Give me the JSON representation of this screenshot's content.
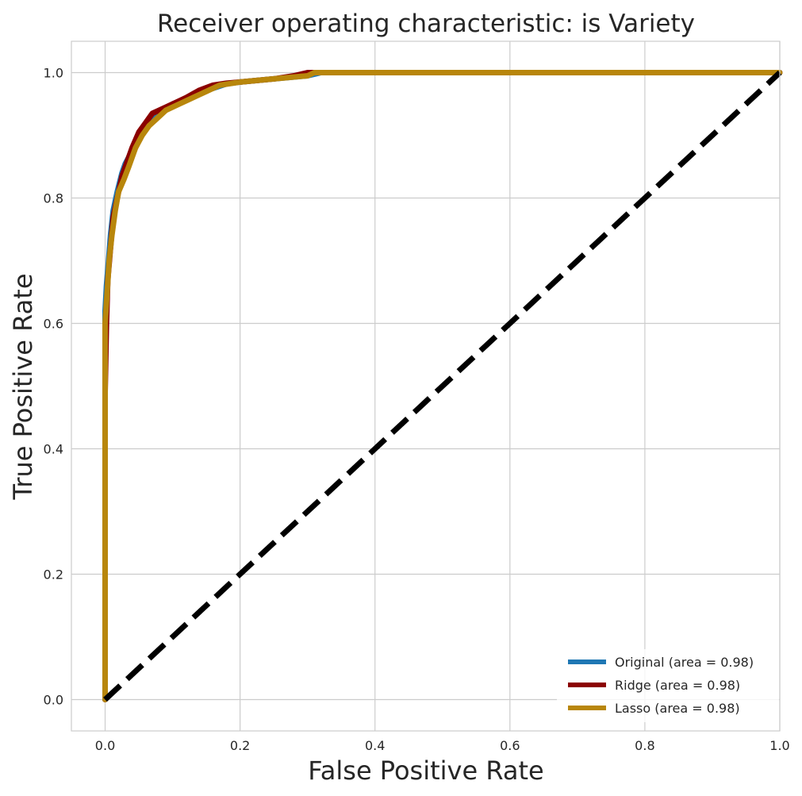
{
  "chart_data": {
    "type": "line",
    "title": "Receiver operating characteristic: is Variety",
    "xlabel": "False Positive Rate",
    "ylabel": "True Positive Rate",
    "xlim": [
      -0.05,
      1.0
    ],
    "ylim": [
      -0.05,
      1.05
    ],
    "xticks": [
      "0.0",
      "0.2",
      "0.4",
      "0.6",
      "0.8",
      "1.0"
    ],
    "yticks": [
      "0.0",
      "0.2",
      "0.4",
      "0.6",
      "0.8",
      "1.0"
    ],
    "grid": true,
    "legend_position": "lower-right",
    "series": [
      {
        "name": "Original (area = 0.98)",
        "color": "#1f77b4",
        "x": [
          0.0,
          0.0,
          0.0,
          0.002,
          0.005,
          0.008,
          0.012,
          0.018,
          0.025,
          0.03,
          0.04,
          0.05,
          0.06,
          0.07,
          0.08,
          0.1,
          0.12,
          0.14,
          0.16,
          0.18,
          0.2,
          0.25,
          0.3,
          0.32,
          0.4,
          1.0
        ],
        "y": [
          0.0,
          0.5,
          0.62,
          0.66,
          0.7,
          0.74,
          0.78,
          0.81,
          0.84,
          0.855,
          0.875,
          0.9,
          0.915,
          0.93,
          0.935,
          0.95,
          0.958,
          0.97,
          0.975,
          0.982,
          0.985,
          0.99,
          0.995,
          1.0,
          1.0,
          1.0
        ]
      },
      {
        "name": "Ridge (area = 0.98)",
        "color": "#8b0000",
        "x": [
          0.0,
          0.0,
          0.002,
          0.004,
          0.008,
          0.012,
          0.018,
          0.025,
          0.03,
          0.04,
          0.05,
          0.06,
          0.07,
          0.08,
          0.1,
          0.12,
          0.14,
          0.16,
          0.18,
          0.2,
          0.25,
          0.28,
          0.3,
          0.4,
          1.0
        ],
        "y": [
          0.0,
          0.49,
          0.6,
          0.67,
          0.72,
          0.77,
          0.8,
          0.835,
          0.85,
          0.88,
          0.905,
          0.92,
          0.935,
          0.94,
          0.95,
          0.96,
          0.972,
          0.98,
          0.983,
          0.985,
          0.99,
          0.995,
          1.0,
          1.0,
          1.0
        ]
      },
      {
        "name": "Lasso (area = 0.98)",
        "color": "#b8860b",
        "x": [
          0.0,
          0.0,
          0.0,
          0.003,
          0.006,
          0.01,
          0.015,
          0.02,
          0.028,
          0.035,
          0.045,
          0.055,
          0.065,
          0.075,
          0.09,
          0.11,
          0.13,
          0.15,
          0.17,
          0.2,
          0.25,
          0.3,
          0.31,
          0.4,
          1.0
        ],
        "y": [
          0.0,
          0.45,
          0.6,
          0.65,
          0.7,
          0.74,
          0.78,
          0.81,
          0.83,
          0.85,
          0.88,
          0.9,
          0.915,
          0.925,
          0.94,
          0.95,
          0.96,
          0.97,
          0.98,
          0.985,
          0.99,
          0.995,
          1.0,
          1.0,
          1.0
        ]
      },
      {
        "name": "",
        "color": "#000000",
        "dashed": true,
        "x": [
          0.0,
          1.0
        ],
        "y": [
          0.0,
          1.0
        ]
      }
    ]
  }
}
